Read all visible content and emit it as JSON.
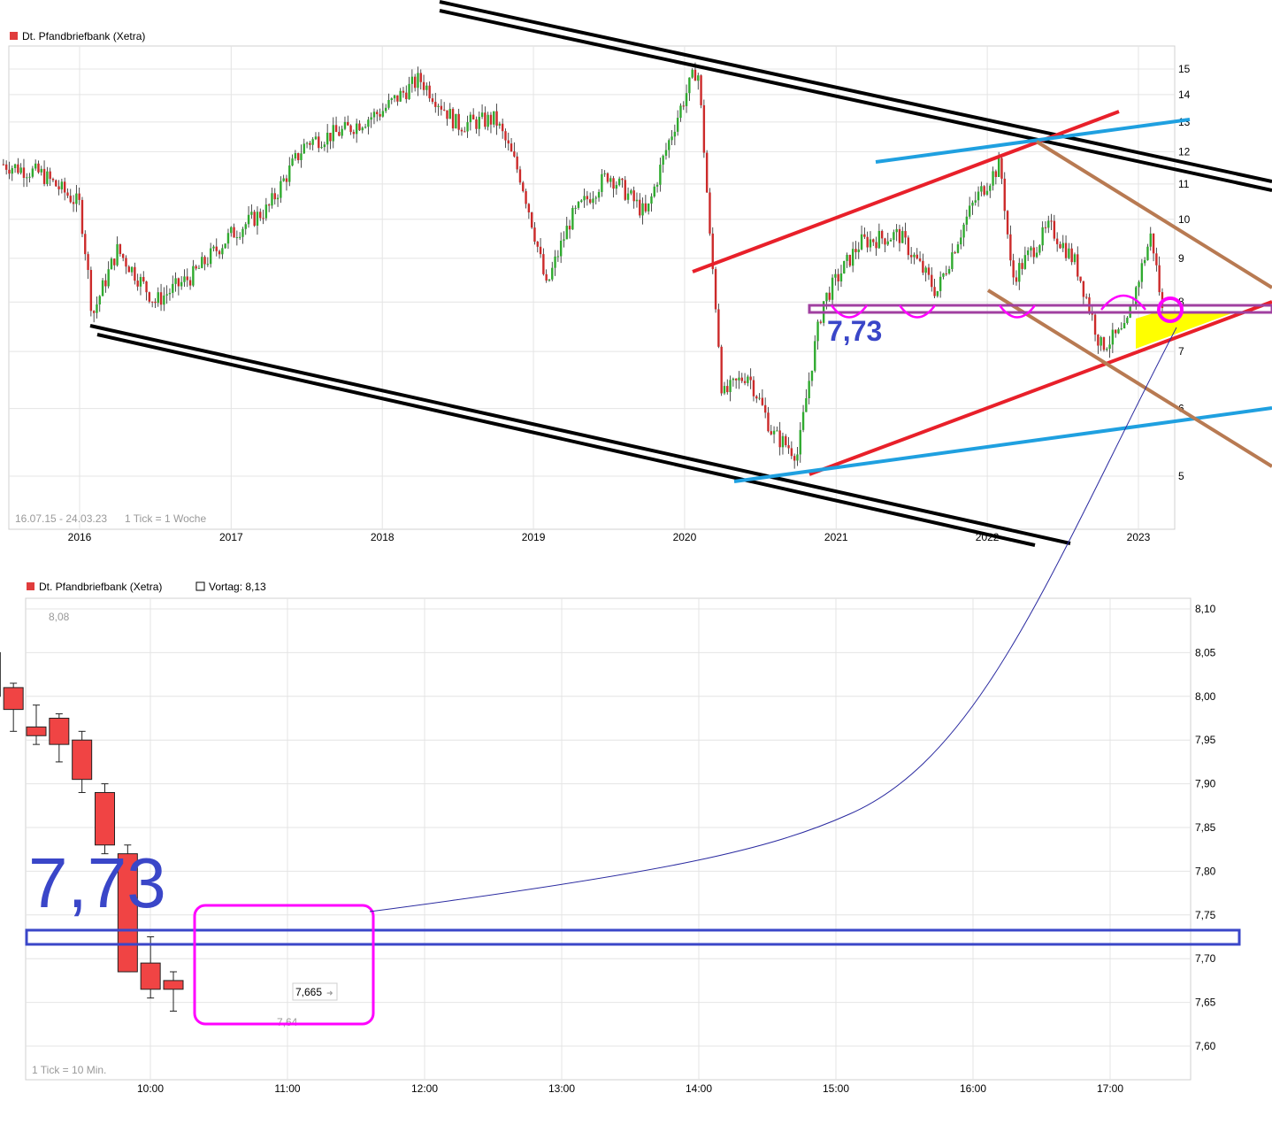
{
  "chart_data": [
    {
      "type": "candlestick",
      "title": "Dt. Pfandbriefbank (Xetra)",
      "legend_color": "#e03c3c",
      "period": "16.07.15 - 24.03.23",
      "tick_note": "1 Tick = 1 Woche",
      "x_ticks": [
        "2016",
        "2017",
        "2018",
        "2019",
        "2020",
        "2021",
        "2022",
        "2023"
      ],
      "y_ticks": [
        "5",
        "6",
        "7",
        "8",
        "9",
        "10",
        "11",
        "12",
        "13",
        "14",
        "15"
      ],
      "y_scale": "log",
      "ylim": [
        4.5,
        15.5
      ],
      "annotation": "7,73",
      "series": [
        {
          "x": [
            "2015-07",
            "2015-10",
            "2016-01",
            "2016-02",
            "2016-04",
            "2016-07",
            "2016-10",
            "2017-01",
            "2017-04",
            "2017-07",
            "2017-10",
            "2018-01",
            "2018-04",
            "2018-07",
            "2018-10",
            "2018-12",
            "2019-02",
            "2019-04",
            "2019-07",
            "2019-10",
            "2020-01",
            "2020-02",
            "2020-03",
            "2020-04",
            "2020-06",
            "2020-08",
            "2020-10",
            "2020-12",
            "2021-03",
            "2021-06",
            "2021-09",
            "2021-12",
            "2022-02",
            "2022-03",
            "2022-06",
            "2022-08",
            "2022-10",
            "2022-12",
            "2023-02",
            "2023-03"
          ],
          "close": [
            11.6,
            11.3,
            10.4,
            7.7,
            9.2,
            8.0,
            8.6,
            9.6,
            10.3,
            12.3,
            12.7,
            13.4,
            14.6,
            12.9,
            13.1,
            11.2,
            8.3,
            10.0,
            11.3,
            10.1,
            13.9,
            15.1,
            9.6,
            6.2,
            6.6,
            5.6,
            5.3,
            8.0,
            9.4,
            9.6,
            8.2,
            10.5,
            11.6,
            8.5,
            9.8,
            8.9,
            7.1,
            7.4,
            9.6,
            7.7
          ]
        }
      ]
    },
    {
      "type": "candlestick",
      "title": "Dt. Pfandbriefbank (Xetra)",
      "legend_color": "#e03c3c",
      "reference_label": "Vortag: 8,13",
      "tick_note": "1 Tick = 10 Min.",
      "x_ticks": [
        "10:00",
        "11:00",
        "12:00",
        "13:00",
        "14:00",
        "15:00",
        "16:00",
        "17:00"
      ],
      "y_ticks": [
        "8,10",
        "8,05",
        "8,00",
        "7,95",
        "7,90",
        "7,85",
        "7,80",
        "7,75",
        "7,70",
        "7,65",
        "7,60"
      ],
      "ylim": [
        7.59,
        8.11
      ],
      "high_label": "8,08",
      "low_label": "7,64",
      "last_price": "7,665",
      "annotation": "7,73",
      "series": [
        {
          "x": [
            "09:10",
            "09:20",
            "09:30",
            "09:40",
            "09:50",
            "10:00",
            "10:10",
            "10:20",
            "10:30",
            "10:40",
            "10:50",
            "11:00"
          ],
          "open": [
            8.055,
            8.005,
            8.035,
            8.05,
            8.01,
            7.965,
            7.975,
            7.95,
            7.89,
            7.82,
            7.695,
            7.675
          ],
          "high": [
            8.06,
            8.08,
            8.07,
            8.065,
            8.015,
            7.99,
            7.98,
            7.96,
            7.9,
            7.83,
            7.725,
            7.685
          ],
          "low": [
            7.965,
            8.0,
            8.025,
            7.995,
            7.96,
            7.945,
            7.925,
            7.89,
            7.82,
            7.685,
            7.655,
            7.64
          ],
          "close": [
            7.98,
            8.05,
            8.048,
            8.0,
            7.985,
            7.955,
            7.945,
            7.905,
            7.83,
            7.685,
            7.665,
            7.665
          ]
        }
      ]
    }
  ]
}
